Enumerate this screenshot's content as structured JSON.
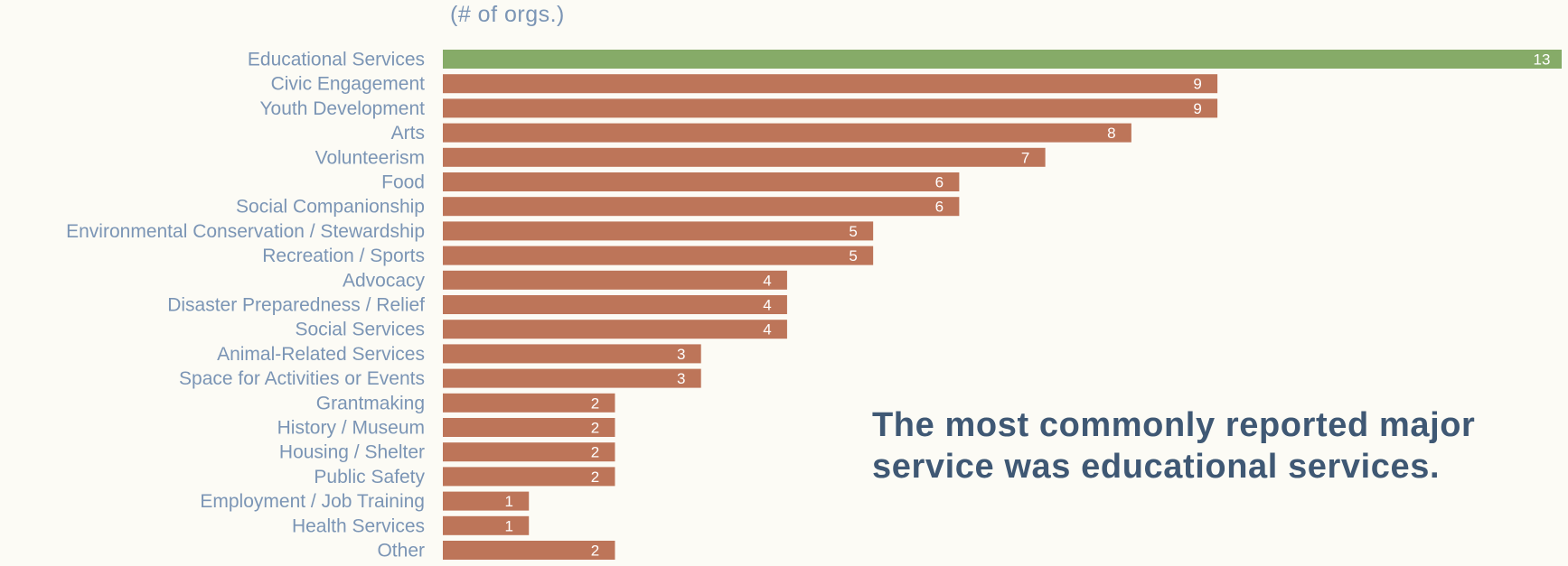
{
  "unit_label": "(# of orgs.)",
  "callout": "The most commonly reported major service was educational services.",
  "colors": {
    "highlight": "#86ab68",
    "bar": "#bd7559",
    "category_label": "#7b95b5",
    "value_label": "#ffffff",
    "callout": "#3f5874",
    "background": "#fcfbf5"
  },
  "chart_data": {
    "type": "bar",
    "orientation": "horizontal",
    "categories": [
      "Educational Services",
      "Civic Engagement",
      "Youth Development",
      "Arts",
      "Volunteerism",
      "Food",
      "Social Companionship",
      "Environmental Conservation / Stewardship",
      "Recreation / Sports",
      "Advocacy",
      "Disaster Preparedness / Relief",
      "Social Services",
      "Animal-Related Services",
      "Space for Activities or Events",
      "Grantmaking",
      "History / Museum",
      "Housing / Shelter",
      "Public Safety",
      "Employment / Job Training",
      "Health Services",
      "Other"
    ],
    "values": [
      13,
      9,
      9,
      8,
      7,
      6,
      6,
      5,
      5,
      4,
      4,
      4,
      3,
      3,
      2,
      2,
      2,
      2,
      1,
      1,
      2
    ],
    "highlighted_category": "Educational Services",
    "xlim": [
      0,
      13
    ],
    "title": "",
    "xlabel": "",
    "ylabel": "",
    "grid": false,
    "data_labels": true,
    "legend": "none"
  }
}
